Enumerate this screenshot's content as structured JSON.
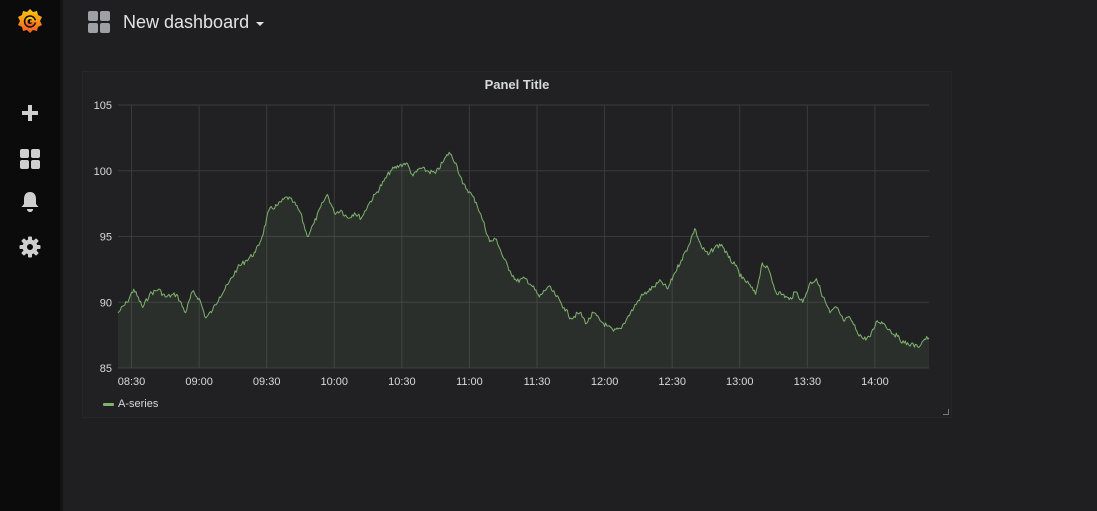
{
  "sidemenu": {
    "items": [
      {
        "name": "create",
        "icon": "plus-icon"
      },
      {
        "name": "dashboards",
        "icon": "apps-icon"
      },
      {
        "name": "alerting",
        "icon": "bell-icon"
      },
      {
        "name": "configuration",
        "icon": "gear-icon"
      }
    ]
  },
  "navbar": {
    "dashboard_title": "New dashboard"
  },
  "panel": {
    "title": "Panel Title",
    "legend": [
      {
        "name": "A-series",
        "color": "#7eb26d"
      }
    ]
  },
  "colors": {
    "series": "#7eb26d",
    "brand_orange": "#f37b20",
    "brand_yellow": "#fbb33b"
  },
  "chart_data": {
    "type": "line",
    "title": "Panel Title",
    "xlabel": "",
    "ylabel": "",
    "ylim": [
      85,
      105
    ],
    "y_ticks": [
      "85",
      "90",
      "95",
      "100",
      "105"
    ],
    "x_ticks": [
      "08:30",
      "09:00",
      "09:30",
      "10:00",
      "10:30",
      "11:00",
      "11:30",
      "12:00",
      "12:30",
      "13:00",
      "13:30",
      "14:00"
    ],
    "x_range": [
      "08:24",
      "14:24"
    ],
    "grid": true,
    "fill": true,
    "legend": "bottom-left",
    "series": [
      {
        "name": "A-series",
        "color": "#7eb26d",
        "points": [
          [
            "08:24",
            89.2
          ],
          [
            "08:28",
            90.0
          ],
          [
            "08:31",
            91.0
          ],
          [
            "08:35",
            89.6
          ],
          [
            "08:38",
            90.6
          ],
          [
            "08:42",
            91.0
          ],
          [
            "08:45",
            90.4
          ],
          [
            "08:50",
            90.6
          ],
          [
            "08:54",
            89.2
          ],
          [
            "08:57",
            90.8
          ],
          [
            "09:00",
            90.3
          ],
          [
            "09:03",
            88.8
          ],
          [
            "09:06",
            89.4
          ],
          [
            "09:09",
            90.4
          ],
          [
            "09:13",
            91.4
          ],
          [
            "09:17",
            92.6
          ],
          [
            "09:21",
            93.2
          ],
          [
            "09:25",
            93.8
          ],
          [
            "09:28",
            95.0
          ],
          [
            "09:31",
            97.0
          ],
          [
            "09:35",
            97.4
          ],
          [
            "09:39",
            98.0
          ],
          [
            "09:42",
            97.6
          ],
          [
            "09:45",
            96.8
          ],
          [
            "09:48",
            95.0
          ],
          [
            "09:51",
            96.0
          ],
          [
            "09:55",
            97.6
          ],
          [
            "09:57",
            98.2
          ],
          [
            "10:00",
            96.8
          ],
          [
            "10:03",
            97.0
          ],
          [
            "10:06",
            96.4
          ],
          [
            "10:09",
            96.8
          ],
          [
            "10:12",
            96.4
          ],
          [
            "10:15",
            97.4
          ],
          [
            "10:19",
            98.4
          ],
          [
            "10:22",
            99.2
          ],
          [
            "10:25",
            100.0
          ],
          [
            "10:29",
            100.4
          ],
          [
            "10:32",
            100.6
          ],
          [
            "10:35",
            99.6
          ],
          [
            "10:38",
            100.2
          ],
          [
            "10:41",
            100.0
          ],
          [
            "10:45",
            99.8
          ],
          [
            "10:48",
            100.6
          ],
          [
            "10:51",
            101.4
          ],
          [
            "10:54",
            100.6
          ],
          [
            "10:57",
            99.0
          ],
          [
            "11:00",
            98.4
          ],
          [
            "11:03",
            97.6
          ],
          [
            "11:06",
            96.2
          ],
          [
            "11:09",
            94.6
          ],
          [
            "11:12",
            94.8
          ],
          [
            "11:15",
            93.4
          ],
          [
            "11:18",
            92.4
          ],
          [
            "11:21",
            91.6
          ],
          [
            "11:25",
            91.8
          ],
          [
            "11:28",
            91.2
          ],
          [
            "11:31",
            90.4
          ],
          [
            "11:35",
            91.2
          ],
          [
            "11:38",
            90.6
          ],
          [
            "11:42",
            89.6
          ],
          [
            "11:45",
            88.8
          ],
          [
            "11:49",
            89.2
          ],
          [
            "11:52",
            88.4
          ],
          [
            "11:55",
            89.2
          ],
          [
            "11:58",
            88.6
          ],
          [
            "12:01",
            88.2
          ],
          [
            "12:04",
            87.8
          ],
          [
            "12:07",
            88.0
          ],
          [
            "12:10",
            88.8
          ],
          [
            "12:13",
            89.6
          ],
          [
            "12:16",
            90.4
          ],
          [
            "12:19",
            90.8
          ],
          [
            "12:22",
            91.2
          ],
          [
            "12:25",
            91.6
          ],
          [
            "12:28",
            91.0
          ],
          [
            "12:31",
            92.2
          ],
          [
            "12:34",
            93.2
          ],
          [
            "12:37",
            94.2
          ],
          [
            "12:40",
            95.6
          ],
          [
            "12:43",
            94.2
          ],
          [
            "12:46",
            93.6
          ],
          [
            "12:49",
            94.2
          ],
          [
            "12:52",
            94.4
          ],
          [
            "12:55",
            93.4
          ],
          [
            "12:58",
            92.8
          ],
          [
            "13:01",
            91.8
          ],
          [
            "13:04",
            91.4
          ],
          [
            "13:07",
            90.6
          ],
          [
            "13:10",
            93.0
          ],
          [
            "13:13",
            92.4
          ],
          [
            "13:16",
            90.8
          ],
          [
            "13:19",
            90.6
          ],
          [
            "13:22",
            90.2
          ],
          [
            "13:25",
            90.8
          ],
          [
            "13:28",
            90.0
          ],
          [
            "13:31",
            91.4
          ],
          [
            "13:34",
            91.8
          ],
          [
            "13:37",
            90.4
          ],
          [
            "13:40",
            89.2
          ],
          [
            "13:43",
            89.6
          ],
          [
            "13:46",
            88.6
          ],
          [
            "13:49",
            88.8
          ],
          [
            "13:52",
            87.8
          ],
          [
            "13:55",
            87.2
          ],
          [
            "13:58",
            87.4
          ],
          [
            "14:01",
            88.6
          ],
          [
            "14:04",
            88.4
          ],
          [
            "14:07",
            87.8
          ],
          [
            "14:10",
            87.4
          ],
          [
            "14:13",
            86.9
          ],
          [
            "14:16",
            86.8
          ],
          [
            "14:19",
            86.6
          ],
          [
            "14:22",
            87.2
          ],
          [
            "14:24",
            87.3
          ]
        ]
      }
    ]
  }
}
